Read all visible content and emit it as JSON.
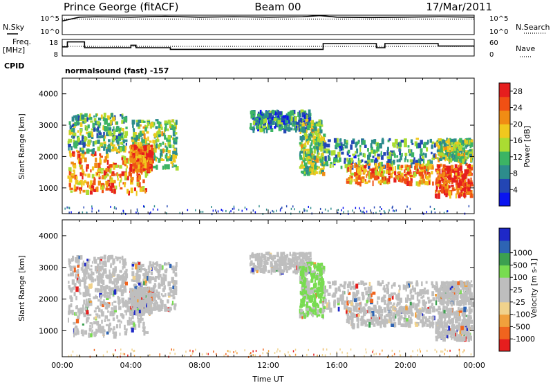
{
  "header": {
    "station": "Prince George (fitACF)",
    "beam": "Beam 00",
    "date": "17/Mar/2011"
  },
  "left_labels": {
    "nsky": "N.Sky",
    "freq": "Freq.",
    "freq_unit": "[MHz]",
    "cpid": "CPID"
  },
  "right_labels": {
    "nsearch": "N.Search",
    "nave": "Nave"
  },
  "mode_text": "normalsound (fast) -157",
  "colors": {
    "power": [
      "#0a14f0",
      "#2346b4",
      "#2d8c8c",
      "#3cb464",
      "#aadc32",
      "#f0c81e",
      "#f08c14",
      "#f05014",
      "#e61e1e"
    ],
    "velocity": [
      "#e61e1e",
      "#f0641e",
      "#f0a03c",
      "#f0d28c",
      "#bebebe",
      "#bebebe",
      "#78dc50",
      "#3ca050",
      "#2d64b4",
      "#1e28c8"
    ]
  },
  "chart_data": [
    {
      "type": "line",
      "name": "noise-panel",
      "left_axis_ticks": [
        "10^5",
        "10^0"
      ],
      "right_axis_ticks": [
        "10^5",
        "10^0"
      ],
      "series": [
        {
          "name": "N.Sky",
          "style": "solid",
          "x": [
            0,
            1,
            2,
            4,
            6,
            8,
            10,
            12,
            14,
            15,
            16,
            18,
            20,
            22,
            24
          ],
          "y": [
            3.5,
            4.5,
            4.6,
            4.5,
            4.7,
            4.5,
            4.6,
            4.5,
            4.6,
            4.9,
            4.5,
            4.4,
            4.5,
            4.6,
            4.5
          ]
        },
        {
          "name": "N.Search",
          "style": "dotted",
          "x": [
            0,
            24
          ],
          "y": [
            4.0,
            4.0
          ]
        }
      ],
      "ylim": [
        0,
        5
      ]
    },
    {
      "type": "line",
      "name": "frequency-panel",
      "left_axis_ticks": [
        "18",
        "8"
      ],
      "right_axis_ticks": [
        "60",
        "0"
      ],
      "series": [
        {
          "name": "Freq.",
          "style": "step",
          "x": [
            0,
            0.3,
            1.3,
            4.0,
            4.3,
            6.3,
            15.2,
            18.3,
            18.8,
            21.9,
            24
          ],
          "y": [
            13.5,
            16.5,
            13.0,
            14.5,
            13.0,
            12.0,
            15.5,
            13.0,
            15.5,
            14.0,
            14.0
          ]
        },
        {
          "name": "Nave",
          "style": "dotted",
          "x": [
            0,
            24
          ],
          "y": [
            13.8,
            13.8
          ]
        }
      ],
      "ylim": [
        8,
        18
      ]
    },
    {
      "type": "heatmap",
      "name": "power-panel",
      "ylabel": "Slant Range [km]",
      "xlabel": "",
      "xlim": [
        0,
        24
      ],
      "ylim": [
        180,
        4500
      ],
      "ytick_labels": [
        "1000",
        "2000",
        "3000",
        "4000"
      ],
      "colorbar": {
        "label": "Power [dB]",
        "ticks": [
          "4",
          "8",
          "12",
          "16",
          "20",
          "24",
          "28"
        ],
        "range": [
          0,
          30
        ]
      }
    },
    {
      "type": "heatmap",
      "name": "velocity-panel",
      "ylabel": "Slant Range [km]",
      "xlabel": "Time UT",
      "xlim": [
        0,
        24
      ],
      "ylim": [
        180,
        4500
      ],
      "xtick_labels": [
        "00:00",
        "04:00",
        "08:00",
        "12:00",
        "16:00",
        "20:00",
        "00:00"
      ],
      "ytick_labels": [
        "1000",
        "2000",
        "3000",
        "4000"
      ],
      "colorbar": {
        "label": "Velocity [m s-1]",
        "ticks": [
          "-1000",
          "-500",
          "-100",
          "-25",
          "25",
          "100",
          "500",
          "1000"
        ]
      }
    }
  ]
}
